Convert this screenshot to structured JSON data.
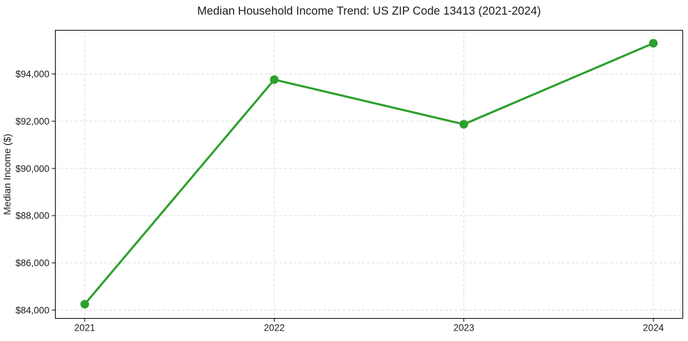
{
  "figure": {
    "background_color": "#ffffff",
    "text_color": "#1a1a1a"
  },
  "chart_data": {
    "type": "line",
    "title": "Median Household Income Trend: US ZIP Code 13413 (2021-2024)",
    "xlabel": "",
    "ylabel": "Median Income ($)",
    "categories": [
      "2021",
      "2022",
      "2023",
      "2024"
    ],
    "series": [
      {
        "name": "Median Household Income",
        "values": [
          84250,
          93760,
          91870,
          95300
        ],
        "color": "#2ca02c",
        "marker": "circle"
      }
    ],
    "ylim": [
      83650,
      95850
    ],
    "yticks": [
      84000,
      86000,
      88000,
      90000,
      92000,
      94000
    ],
    "ytick_labels": [
      "$84,000",
      "$86,000",
      "$88,000",
      "$90,000",
      "$92,000",
      "$94,000"
    ],
    "grid": true,
    "grid_line_style": "dashed",
    "grid_color": "#d9d9d9",
    "axis_color": "#000000",
    "legend": false
  }
}
